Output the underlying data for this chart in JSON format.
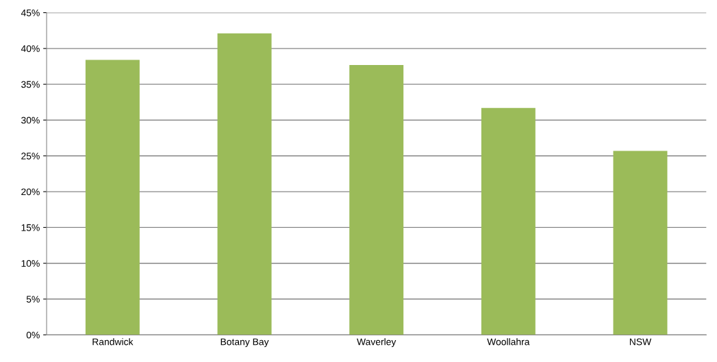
{
  "chart_data": {
    "type": "bar",
    "categories": [
      "Randwick",
      "Botany Bay",
      "Waverley",
      "Woollahra",
      "NSW"
    ],
    "values": [
      38.4,
      42.1,
      37.7,
      31.7,
      25.7
    ],
    "color": "#9bbb59",
    "ylim": [
      0,
      45
    ],
    "yticks": [
      {
        "value": 0,
        "label": "0%"
      },
      {
        "value": 5,
        "label": "5%"
      },
      {
        "value": 10,
        "label": "10%"
      },
      {
        "value": 15,
        "label": "15%"
      },
      {
        "value": 20,
        "label": "20%"
      },
      {
        "value": 25,
        "label": "25%"
      },
      {
        "value": 30,
        "label": "30%"
      },
      {
        "value": 35,
        "label": "35%"
      },
      {
        "value": 40,
        "label": "40%"
      },
      {
        "value": 45,
        "label": "45%"
      }
    ],
    "grid": "y"
  }
}
